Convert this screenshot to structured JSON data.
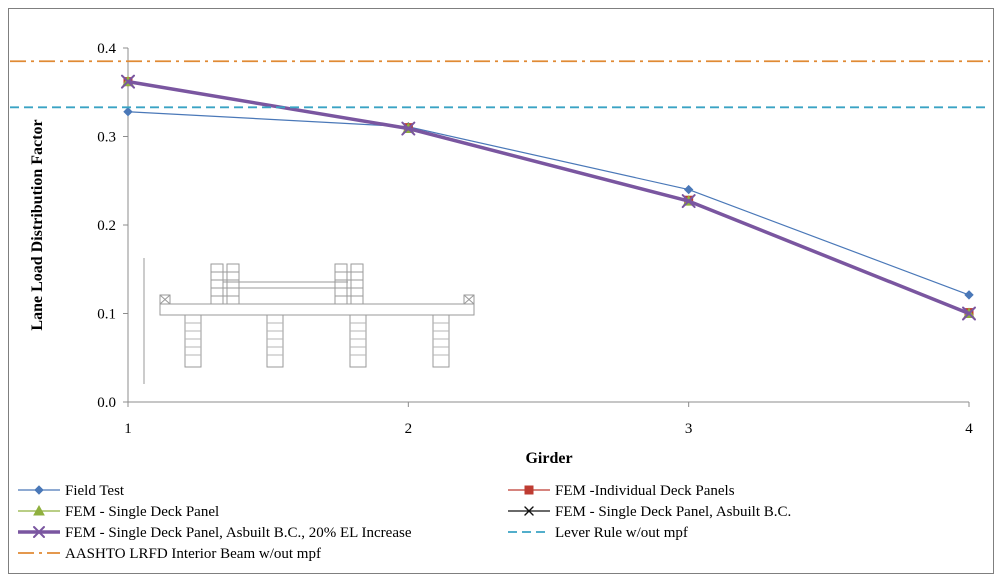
{
  "chart_data": {
    "type": "line",
    "xlabel": "Girder",
    "ylabel": "Lane Load Distribution  Factor",
    "x": [
      1,
      2,
      3,
      4
    ],
    "xticks": [
      "1",
      "2",
      "3",
      "4"
    ],
    "yticks": [
      "0.0",
      "0.1",
      "0.2",
      "0.3",
      "0.4"
    ],
    "xlim": [
      1,
      4
    ],
    "ylim": [
      0,
      0.4
    ],
    "grid": false,
    "legend_position": "bottom",
    "series": [
      {
        "name": "Field Test",
        "values": [
          0.328,
          0.311,
          0.24,
          0.121
        ],
        "color": "#4a78b8",
        "marker": "diamond",
        "dash": "solid",
        "width": 1.2
      },
      {
        "name": "FEM -Individual Deck Panels",
        "values": [
          0.362,
          0.31,
          0.228,
          0.101
        ],
        "color": "#be3b32",
        "marker": "square",
        "dash": "solid",
        "width": 1.2
      },
      {
        "name": "FEM - Single Deck Panel",
        "values": [
          0.362,
          0.309,
          0.227,
          0.1
        ],
        "color": "#8fb03e",
        "marker": "triangle",
        "dash": "solid",
        "width": 1.2
      },
      {
        "name": "FEM - Single Deck Panel, Asbuilt B.C.",
        "values": [
          0.362,
          0.309,
          0.227,
          0.1
        ],
        "color": "#111111",
        "marker": "x",
        "dash": "solid",
        "width": 1.2
      },
      {
        "name": "FEM - Single Deck Panel, Asbuilt B.C., 20% EL Increase",
        "values": [
          0.362,
          0.309,
          0.227,
          0.1
        ],
        "color": "#7a56a0",
        "marker": "x",
        "dash": "solid",
        "width": 3.5
      },
      {
        "name": "Lever Rule w/out mpf",
        "values": [
          0.333,
          0.333,
          0.333,
          0.333
        ],
        "color": "#3aa3c4",
        "marker": "none",
        "dash": "dash",
        "width": 1.8
      },
      {
        "name": "AASHTO LRFD Interior Beam w/out mpf",
        "values": [
          0.385,
          0.385,
          0.385,
          0.385
        ],
        "color": "#e08a34",
        "marker": "none",
        "dash": "dashdot",
        "width": 1.8
      }
    ]
  }
}
